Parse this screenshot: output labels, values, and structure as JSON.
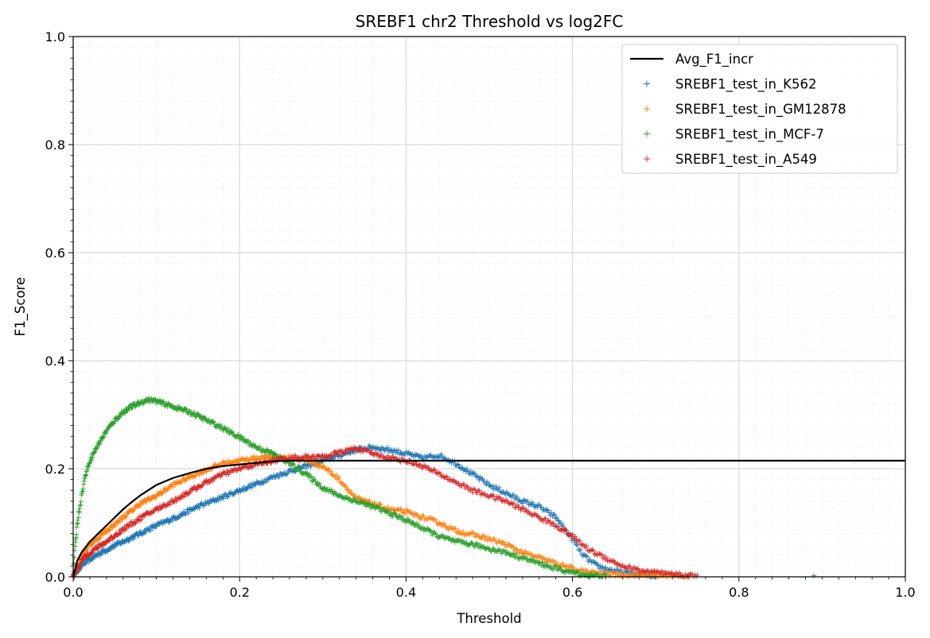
{
  "chart_data": {
    "type": "line",
    "title": "SREBF1 chr2 Threshold vs log2FC",
    "xlabel": "Threshold",
    "ylabel": "F1_Score",
    "xlim": [
      0,
      1
    ],
    "ylim": [
      0,
      1
    ],
    "x_ticks": [
      "0.0",
      "0.2",
      "0.4",
      "0.6",
      "0.8",
      "1.0"
    ],
    "y_ticks": [
      "0.0",
      "0.2",
      "0.4",
      "0.6",
      "0.8",
      "1.0"
    ],
    "grid": true,
    "minor_grid": true,
    "legend_position": "top-right",
    "series": [
      {
        "name": "Avg_F1_incr",
        "kind": "line",
        "color": "#000000",
        "points": [
          [
            0,
            0
          ],
          [
            0.005,
            0.03
          ],
          [
            0.01,
            0.045
          ],
          [
            0.02,
            0.065
          ],
          [
            0.03,
            0.08
          ],
          [
            0.04,
            0.095
          ],
          [
            0.05,
            0.11
          ],
          [
            0.06,
            0.125
          ],
          [
            0.07,
            0.138
          ],
          [
            0.08,
            0.15
          ],
          [
            0.09,
            0.16
          ],
          [
            0.1,
            0.17
          ],
          [
            0.12,
            0.183
          ],
          [
            0.14,
            0.192
          ],
          [
            0.16,
            0.2
          ],
          [
            0.18,
            0.205
          ],
          [
            0.2,
            0.208
          ],
          [
            0.22,
            0.211
          ],
          [
            0.24,
            0.214
          ],
          [
            0.26,
            0.215
          ],
          [
            0.3,
            0.215
          ],
          [
            0.4,
            0.215
          ],
          [
            0.6,
            0.215
          ],
          [
            0.8,
            0.215
          ],
          [
            1.0,
            0.215
          ]
        ]
      },
      {
        "name": "SREBF1_test_in_K562",
        "kind": "markers",
        "color": "#1f77b4",
        "points": [
          [
            0,
            0
          ],
          [
            0.01,
            0.022
          ],
          [
            0.02,
            0.032
          ],
          [
            0.03,
            0.042
          ],
          [
            0.05,
            0.058
          ],
          [
            0.08,
            0.08
          ],
          [
            0.1,
            0.095
          ],
          [
            0.12,
            0.108
          ],
          [
            0.15,
            0.13
          ],
          [
            0.18,
            0.148
          ],
          [
            0.2,
            0.16
          ],
          [
            0.22,
            0.172
          ],
          [
            0.24,
            0.185
          ],
          [
            0.26,
            0.195
          ],
          [
            0.28,
            0.205
          ],
          [
            0.3,
            0.215
          ],
          [
            0.32,
            0.225
          ],
          [
            0.34,
            0.235
          ],
          [
            0.36,
            0.24
          ],
          [
            0.38,
            0.235
          ],
          [
            0.4,
            0.228
          ],
          [
            0.42,
            0.22
          ],
          [
            0.44,
            0.225
          ],
          [
            0.46,
            0.21
          ],
          [
            0.48,
            0.19
          ],
          [
            0.5,
            0.17
          ],
          [
            0.52,
            0.155
          ],
          [
            0.54,
            0.14
          ],
          [
            0.56,
            0.13
          ],
          [
            0.58,
            0.11
          ],
          [
            0.59,
            0.09
          ],
          [
            0.6,
            0.07
          ],
          [
            0.61,
            0.045
          ],
          [
            0.62,
            0.03
          ],
          [
            0.63,
            0.02
          ],
          [
            0.64,
            0.015
          ],
          [
            0.66,
            0.008
          ],
          [
            0.68,
            0.004
          ],
          [
            0.7,
            0.001
          ],
          [
            0.89,
            0.002
          ]
        ]
      },
      {
        "name": "SREBF1_test_in_GM12878",
        "kind": "markers",
        "color": "#ff7f0e",
        "points": [
          [
            0,
            0
          ],
          [
            0.01,
            0.04
          ],
          [
            0.02,
            0.06
          ],
          [
            0.04,
            0.085
          ],
          [
            0.06,
            0.11
          ],
          [
            0.08,
            0.135
          ],
          [
            0.1,
            0.15
          ],
          [
            0.12,
            0.17
          ],
          [
            0.14,
            0.185
          ],
          [
            0.16,
            0.198
          ],
          [
            0.18,
            0.21
          ],
          [
            0.2,
            0.215
          ],
          [
            0.22,
            0.22
          ],
          [
            0.24,
            0.222
          ],
          [
            0.26,
            0.22
          ],
          [
            0.28,
            0.215
          ],
          [
            0.3,
            0.205
          ],
          [
            0.32,
            0.18
          ],
          [
            0.34,
            0.145
          ],
          [
            0.36,
            0.135
          ],
          [
            0.38,
            0.125
          ],
          [
            0.4,
            0.12
          ],
          [
            0.42,
            0.11
          ],
          [
            0.44,
            0.1
          ],
          [
            0.46,
            0.085
          ],
          [
            0.48,
            0.078
          ],
          [
            0.5,
            0.07
          ],
          [
            0.52,
            0.06
          ],
          [
            0.54,
            0.045
          ],
          [
            0.56,
            0.035
          ],
          [
            0.58,
            0.025
          ],
          [
            0.6,
            0.015
          ],
          [
            0.62,
            0.008
          ],
          [
            0.66,
            0.004
          ],
          [
            0.7,
            0.003
          ],
          [
            0.72,
            0.002
          ],
          [
            0.74,
            0.001
          ]
        ]
      },
      {
        "name": "SREBF1_test_in_MCF-7",
        "kind": "markers",
        "color": "#2ca02c",
        "points": [
          [
            0,
            0
          ],
          [
            0.002,
            0.05
          ],
          [
            0.005,
            0.1
          ],
          [
            0.01,
            0.15
          ],
          [
            0.015,
            0.19
          ],
          [
            0.02,
            0.215
          ],
          [
            0.03,
            0.245
          ],
          [
            0.04,
            0.27
          ],
          [
            0.05,
            0.29
          ],
          [
            0.06,
            0.305
          ],
          [
            0.07,
            0.315
          ],
          [
            0.08,
            0.322
          ],
          [
            0.09,
            0.328
          ],
          [
            0.1,
            0.325
          ],
          [
            0.12,
            0.315
          ],
          [
            0.14,
            0.305
          ],
          [
            0.16,
            0.29
          ],
          [
            0.18,
            0.275
          ],
          [
            0.2,
            0.258
          ],
          [
            0.22,
            0.24
          ],
          [
            0.24,
            0.228
          ],
          [
            0.26,
            0.21
          ],
          [
            0.28,
            0.19
          ],
          [
            0.3,
            0.165
          ],
          [
            0.32,
            0.15
          ],
          [
            0.34,
            0.14
          ],
          [
            0.36,
            0.13
          ],
          [
            0.38,
            0.118
          ],
          [
            0.4,
            0.105
          ],
          [
            0.42,
            0.09
          ],
          [
            0.44,
            0.075
          ],
          [
            0.46,
            0.065
          ],
          [
            0.48,
            0.06
          ],
          [
            0.5,
            0.052
          ],
          [
            0.52,
            0.045
          ],
          [
            0.54,
            0.035
          ],
          [
            0.56,
            0.025
          ],
          [
            0.58,
            0.015
          ],
          [
            0.6,
            0.008
          ],
          [
            0.62,
            0.003
          ],
          [
            0.64,
            0.001
          ]
        ]
      },
      {
        "name": "SREBF1_test_in_A549",
        "kind": "markers",
        "color": "#d62728",
        "points": [
          [
            0,
            0
          ],
          [
            0.01,
            0.03
          ],
          [
            0.02,
            0.045
          ],
          [
            0.04,
            0.065
          ],
          [
            0.06,
            0.088
          ],
          [
            0.08,
            0.108
          ],
          [
            0.1,
            0.125
          ],
          [
            0.12,
            0.14
          ],
          [
            0.14,
            0.158
          ],
          [
            0.16,
            0.175
          ],
          [
            0.18,
            0.19
          ],
          [
            0.2,
            0.2
          ],
          [
            0.22,
            0.208
          ],
          [
            0.24,
            0.215
          ],
          [
            0.26,
            0.22
          ],
          [
            0.28,
            0.222
          ],
          [
            0.3,
            0.222
          ],
          [
            0.32,
            0.23
          ],
          [
            0.34,
            0.238
          ],
          [
            0.36,
            0.228
          ],
          [
            0.38,
            0.22
          ],
          [
            0.4,
            0.215
          ],
          [
            0.42,
            0.205
          ],
          [
            0.44,
            0.19
          ],
          [
            0.46,
            0.175
          ],
          [
            0.48,
            0.16
          ],
          [
            0.5,
            0.15
          ],
          [
            0.52,
            0.14
          ],
          [
            0.54,
            0.125
          ],
          [
            0.56,
            0.11
          ],
          [
            0.58,
            0.095
          ],
          [
            0.6,
            0.075
          ],
          [
            0.62,
            0.05
          ],
          [
            0.64,
            0.035
          ],
          [
            0.66,
            0.02
          ],
          [
            0.68,
            0.012
          ],
          [
            0.7,
            0.008
          ],
          [
            0.72,
            0.004
          ],
          [
            0.74,
            0.003
          ],
          [
            0.75,
            0.001
          ]
        ]
      }
    ]
  }
}
